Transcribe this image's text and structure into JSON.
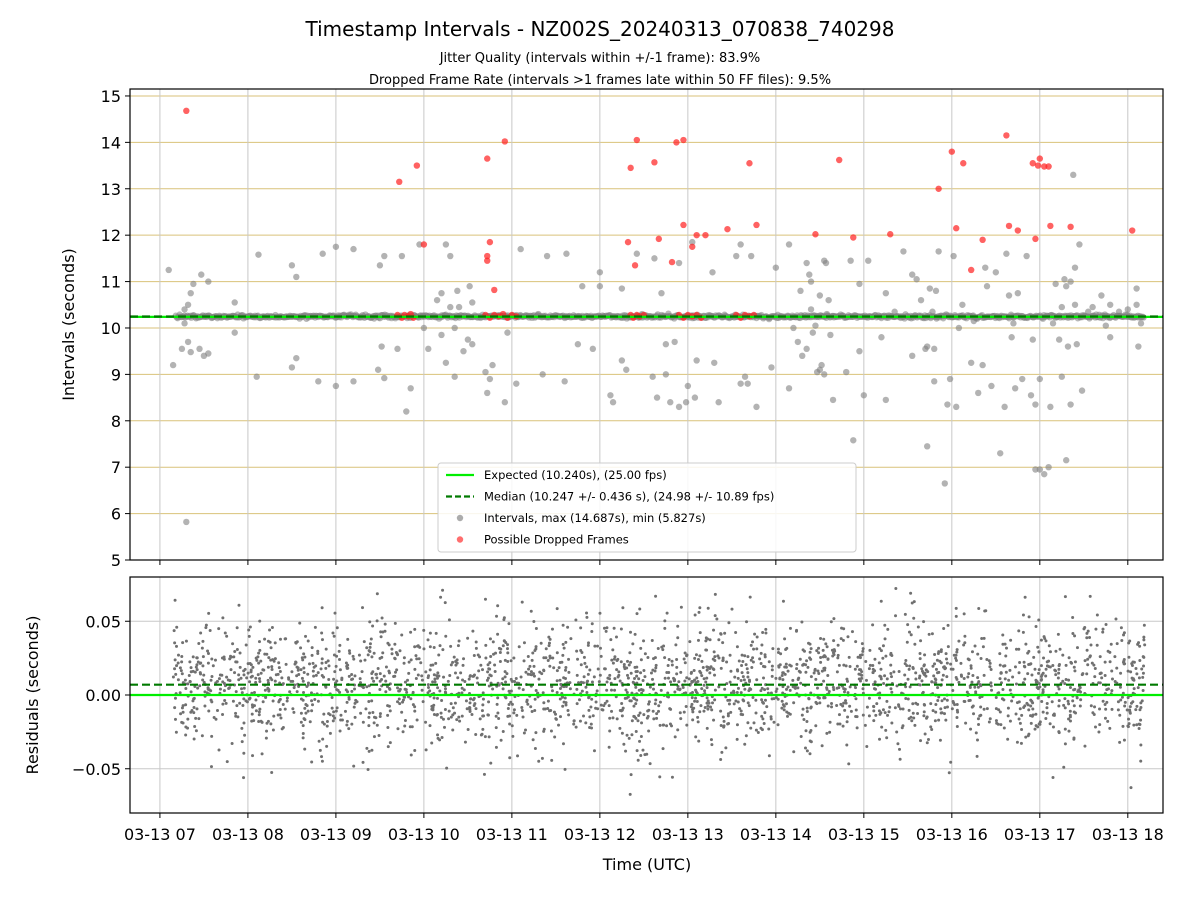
{
  "chart_data": {
    "type": "scatter",
    "title": "Timestamp Intervals - NZ002S_20240313_070838_740298",
    "subtitle_lines": [
      "Jitter Quality (intervals within +/-1 frame): 83.9%",
      "Dropped Frame Rate (intervals >1 frames late within 50 FF files): 9.5%"
    ],
    "xlabel": "Time (UTC)",
    "x_range_hours": [
      6.66,
      18.4
    ],
    "x_ticks": [
      {
        "hour": 7,
        "label": "03-13 07"
      },
      {
        "hour": 8,
        "label": "03-13 08"
      },
      {
        "hour": 9,
        "label": "03-13 09"
      },
      {
        "hour": 10,
        "label": "03-13 10"
      },
      {
        "hour": 11,
        "label": "03-13 11"
      },
      {
        "hour": 12,
        "label": "03-13 12"
      },
      {
        "hour": 13,
        "label": "03-13 13"
      },
      {
        "hour": 14,
        "label": "03-13 14"
      },
      {
        "hour": 15,
        "label": "03-13 15"
      },
      {
        "hour": 16,
        "label": "03-13 16"
      },
      {
        "hour": 17,
        "label": "03-13 17"
      },
      {
        "hour": 18,
        "label": "03-13 18"
      }
    ],
    "top_panel": {
      "ylabel": "Intervals (seconds)",
      "ylim": [
        5,
        15.15
      ],
      "y_ticks": [
        5,
        6,
        7,
        8,
        9,
        10,
        11,
        12,
        13,
        14,
        15
      ],
      "y_tick_labels": [
        "5",
        "6",
        "7",
        "8",
        "9",
        "10",
        "11",
        "12",
        "13",
        "14",
        "15"
      ],
      "grid": "horizontal every 1 s (gold) + vertical at hour ticks",
      "expected_interval": 10.24,
      "median_interval": 10.247,
      "legend_position": "lower-center",
      "legend": [
        {
          "label": "Expected (10.240s), (25.00 fps)",
          "kind": "solid-line",
          "color": "#00ee00"
        },
        {
          "label": "Median (10.247 +/- 0.436 s), (24.98 +/- 10.89 fps)",
          "kind": "dashed-line",
          "color": "#007a00"
        },
        {
          "label": "Intervals, max (14.687s), min (5.827s)",
          "kind": "dot",
          "color": "#808080"
        },
        {
          "label": "Possible Dropped Frames",
          "kind": "dot",
          "color": "#ff2020"
        }
      ],
      "interval_points": [
        [
          7.1,
          11.25
        ],
        [
          7.15,
          9.2
        ],
        [
          7.28,
          10.1
        ],
        [
          7.32,
          9.7
        ],
        [
          7.35,
          9.48
        ],
        [
          7.38,
          10.95
        ],
        [
          7.45,
          9.55
        ],
        [
          7.47,
          11.15
        ],
        [
          7.5,
          9.4
        ],
        [
          7.55,
          9.45
        ],
        [
          7.55,
          11.0
        ],
        [
          7.3,
          5.82
        ],
        [
          7.28,
          10.4
        ],
        [
          7.32,
          10.5
        ],
        [
          7.35,
          10.75
        ],
        [
          7.25,
          9.55
        ],
        [
          7.85,
          10.55
        ],
        [
          7.85,
          9.9
        ],
        [
          8.1,
          8.95
        ],
        [
          8.12,
          11.58
        ],
        [
          8.5,
          9.15
        ],
        [
          8.5,
          11.35
        ],
        [
          8.55,
          9.35
        ],
        [
          8.55,
          11.1
        ],
        [
          8.8,
          8.85
        ],
        [
          8.85,
          11.6
        ],
        [
          9.0,
          11.75
        ],
        [
          9.0,
          8.75
        ],
        [
          9.2,
          8.85
        ],
        [
          9.2,
          11.7
        ],
        [
          9.48,
          9.1
        ],
        [
          9.5,
          11.35
        ],
        [
          9.52,
          9.6
        ],
        [
          9.55,
          11.55
        ],
        [
          9.55,
          8.92
        ],
        [
          9.7,
          9.55
        ],
        [
          9.75,
          11.55
        ],
        [
          9.8,
          8.2
        ],
        [
          9.85,
          8.7
        ],
        [
          9.95,
          11.8
        ],
        [
          10.0,
          10.0
        ],
        [
          10.05,
          9.55
        ],
        [
          10.15,
          10.6
        ],
        [
          10.2,
          9.85
        ],
        [
          10.25,
          11.8
        ],
        [
          10.25,
          9.25
        ],
        [
          10.3,
          11.55
        ],
        [
          10.35,
          8.95
        ],
        [
          10.38,
          10.8
        ],
        [
          10.4,
          10.45
        ],
        [
          10.45,
          9.5
        ],
        [
          10.5,
          9.75
        ],
        [
          10.52,
          10.9
        ],
        [
          10.55,
          10.55
        ],
        [
          10.2,
          10.75
        ],
        [
          10.3,
          10.45
        ],
        [
          10.35,
          10.0
        ],
        [
          10.55,
          9.65
        ],
        [
          10.7,
          9.05
        ],
        [
          10.72,
          8.6
        ],
        [
          10.75,
          8.9
        ],
        [
          10.78,
          9.2
        ],
        [
          10.92,
          8.4
        ],
        [
          10.95,
          9.9
        ],
        [
          11.05,
          8.8
        ],
        [
          11.1,
          11.7
        ],
        [
          11.3,
          10.3
        ],
        [
          11.35,
          9.0
        ],
        [
          11.4,
          11.55
        ],
        [
          11.6,
          8.85
        ],
        [
          11.62,
          11.6
        ],
        [
          11.75,
          9.65
        ],
        [
          11.8,
          10.9
        ],
        [
          11.92,
          9.55
        ],
        [
          12.0,
          10.9
        ],
        [
          12.0,
          11.2
        ],
        [
          12.12,
          8.55
        ],
        [
          12.15,
          8.4
        ],
        [
          12.25,
          9.3
        ],
        [
          12.25,
          10.85
        ],
        [
          12.3,
          9.1
        ],
        [
          12.42,
          11.6
        ],
        [
          12.48,
          10.3
        ],
        [
          12.6,
          8.95
        ],
        [
          12.62,
          11.5
        ],
        [
          12.65,
          8.5
        ],
        [
          12.7,
          10.75
        ],
        [
          12.75,
          9.0
        ],
        [
          12.8,
          8.4
        ],
        [
          12.85,
          9.7
        ],
        [
          12.9,
          8.3
        ],
        [
          12.9,
          11.4
        ],
        [
          12.98,
          8.4
        ],
        [
          13.0,
          8.75
        ],
        [
          13.05,
          11.85
        ],
        [
          13.08,
          8.5
        ],
        [
          12.75,
          9.65
        ],
        [
          13.1,
          9.3
        ],
        [
          13.28,
          11.2
        ],
        [
          13.3,
          9.25
        ],
        [
          13.35,
          8.4
        ],
        [
          13.55,
          11.55
        ],
        [
          13.6,
          11.8
        ],
        [
          13.6,
          8.8
        ],
        [
          13.65,
          8.95
        ],
        [
          13.68,
          8.8
        ],
        [
          13.72,
          11.55
        ],
        [
          13.78,
          8.3
        ],
        [
          13.95,
          9.15
        ],
        [
          14.0,
          11.3
        ],
        [
          14.15,
          8.7
        ],
        [
          14.15,
          11.8
        ],
        [
          14.2,
          10.0
        ],
        [
          14.25,
          9.7
        ],
        [
          14.28,
          10.8
        ],
        [
          14.3,
          9.4
        ],
        [
          14.35,
          11.4
        ],
        [
          14.35,
          9.55
        ],
        [
          14.38,
          11.15
        ],
        [
          14.42,
          9.9
        ],
        [
          14.5,
          10.7
        ],
        [
          14.52,
          9.2
        ],
        [
          14.55,
          11.45
        ],
        [
          14.55,
          9.0
        ],
        [
          14.58,
          10.3
        ],
        [
          14.6,
          10.6
        ],
        [
          14.62,
          9.85
        ],
        [
          14.65,
          8.45
        ],
        [
          14.66,
          10.25
        ],
        [
          14.4,
          11.0
        ],
        [
          14.5,
          9.1
        ],
        [
          14.4,
          10.4
        ],
        [
          14.45,
          10.05
        ],
        [
          14.57,
          11.4
        ],
        [
          14.47,
          9.05
        ],
        [
          14.8,
          9.05
        ],
        [
          14.85,
          11.45
        ],
        [
          14.88,
          7.58
        ],
        [
          14.95,
          9.5
        ],
        [
          14.95,
          10.95
        ],
        [
          15.0,
          8.55
        ],
        [
          15.05,
          11.45
        ],
        [
          15.2,
          9.8
        ],
        [
          15.25,
          10.75
        ],
        [
          15.25,
          8.45
        ],
        [
          15.35,
          10.35
        ],
        [
          15.45,
          11.65
        ],
        [
          15.55,
          11.15
        ],
        [
          15.55,
          9.4
        ],
        [
          15.7,
          9.55
        ],
        [
          15.72,
          7.45
        ],
        [
          15.75,
          10.85
        ],
        [
          15.8,
          8.85
        ],
        [
          15.85,
          11.65
        ],
        [
          15.92,
          6.65
        ],
        [
          15.95,
          8.35
        ],
        [
          15.98,
          8.9
        ],
        [
          16.02,
          11.55
        ],
        [
          16.05,
          8.3
        ],
        [
          16.08,
          10.0
        ],
        [
          16.12,
          10.5
        ],
        [
          15.78,
          10.35
        ],
        [
          15.8,
          9.55
        ],
        [
          15.65,
          10.6
        ],
        [
          15.82,
          10.8
        ],
        [
          15.6,
          11.05
        ],
        [
          15.72,
          9.6
        ],
        [
          16.22,
          9.25
        ],
        [
          16.25,
          10.15
        ],
        [
          16.3,
          8.6
        ],
        [
          16.35,
          9.2
        ],
        [
          16.38,
          11.3
        ],
        [
          16.4,
          10.9
        ],
        [
          16.45,
          8.75
        ],
        [
          16.5,
          11.2
        ],
        [
          16.55,
          7.3
        ],
        [
          16.6,
          8.3
        ],
        [
          16.62,
          11.6
        ],
        [
          16.65,
          10.7
        ],
        [
          16.68,
          9.8
        ],
        [
          16.7,
          10.1
        ],
        [
          16.72,
          8.7
        ],
        [
          16.75,
          10.75
        ],
        [
          16.8,
          8.9
        ],
        [
          16.85,
          11.55
        ],
        [
          16.9,
          8.55
        ],
        [
          16.92,
          9.75
        ],
        [
          16.95,
          8.35
        ],
        [
          17.0,
          8.9
        ],
        [
          16.95,
          6.95
        ],
        [
          17.0,
          6.95
        ],
        [
          17.05,
          6.85
        ],
        [
          17.1,
          7.0
        ],
        [
          17.12,
          8.3
        ],
        [
          17.15,
          10.1
        ],
        [
          17.18,
          10.95
        ],
        [
          17.22,
          9.75
        ],
        [
          17.25,
          8.95
        ],
        [
          17.28,
          11.05
        ],
        [
          17.3,
          7.15
        ],
        [
          17.32,
          9.6
        ],
        [
          17.35,
          8.35
        ],
        [
          17.38,
          13.3
        ],
        [
          17.4,
          11.3
        ],
        [
          17.42,
          9.65
        ],
        [
          17.45,
          11.8
        ],
        [
          17.35,
          11.0
        ],
        [
          17.3,
          10.9
        ],
        [
          17.48,
          8.65
        ],
        [
          17.25,
          10.45
        ],
        [
          17.4,
          10.5
        ],
        [
          17.7,
          10.7
        ],
        [
          17.75,
          10.05
        ],
        [
          17.8,
          9.8
        ],
        [
          17.8,
          10.5
        ],
        [
          18.1,
          10.85
        ],
        [
          18.12,
          9.6
        ],
        [
          18.15,
          10.1
        ],
        [
          18.1,
          10.5
        ],
        [
          17.9,
          10.35
        ],
        [
          18.0,
          10.4
        ],
        [
          17.6,
          10.45
        ],
        [
          17.55,
          10.35
        ]
      ],
      "dropped_points": [
        [
          7.3,
          14.68
        ],
        [
          9.72,
          13.15
        ],
        [
          9.92,
          13.5
        ],
        [
          10.0,
          11.8
        ],
        [
          10.72,
          11.45
        ],
        [
          10.72,
          11.55
        ],
        [
          10.75,
          11.85
        ],
        [
          10.8,
          10.82
        ],
        [
          10.72,
          13.65
        ],
        [
          10.92,
          14.02
        ],
        [
          12.32,
          11.85
        ],
        [
          12.4,
          11.35
        ],
        [
          12.35,
          13.45
        ],
        [
          12.42,
          14.05
        ],
        [
          12.62,
          13.57
        ],
        [
          12.67,
          11.92
        ],
        [
          12.82,
          11.42
        ],
        [
          12.87,
          14.0
        ],
        [
          12.95,
          12.22
        ],
        [
          12.95,
          14.05
        ],
        [
          13.05,
          11.75
        ],
        [
          13.1,
          12.0
        ],
        [
          13.2,
          12.0
        ],
        [
          13.45,
          12.13
        ],
        [
          13.7,
          13.55
        ],
        [
          13.78,
          12.22
        ],
        [
          14.45,
          12.02
        ],
        [
          14.72,
          13.62
        ],
        [
          14.88,
          11.95
        ],
        [
          15.3,
          12.02
        ],
        [
          15.85,
          13.0
        ],
        [
          16.0,
          13.8
        ],
        [
          16.05,
          12.15
        ],
        [
          16.13,
          13.55
        ],
        [
          16.22,
          11.25
        ],
        [
          16.35,
          11.9
        ],
        [
          16.62,
          14.15
        ],
        [
          16.65,
          12.2
        ],
        [
          16.75,
          12.1
        ],
        [
          16.92,
          13.55
        ],
        [
          16.95,
          11.92
        ],
        [
          16.98,
          13.5
        ],
        [
          17.0,
          13.65
        ],
        [
          17.05,
          13.48
        ],
        [
          17.1,
          13.48
        ],
        [
          17.12,
          12.2
        ],
        [
          17.35,
          12.18
        ],
        [
          18.05,
          12.1
        ],
        [
          9.7,
          10.28
        ],
        [
          9.75,
          10.22
        ],
        [
          9.78,
          10.28
        ],
        [
          9.82,
          10.25
        ],
        [
          9.85,
          10.3
        ],
        [
          9.88,
          10.22
        ],
        [
          10.7,
          10.28
        ],
        [
          10.75,
          10.22
        ],
        [
          10.8,
          10.28
        ],
        [
          10.85,
          10.25
        ],
        [
          10.9,
          10.3
        ],
        [
          10.95,
          10.22
        ],
        [
          11.0,
          10.28
        ],
        [
          11.05,
          10.25
        ],
        [
          12.35,
          10.28
        ],
        [
          12.38,
          10.22
        ],
        [
          12.42,
          10.28
        ],
        [
          12.45,
          10.25
        ],
        [
          12.5,
          10.28
        ],
        [
          12.9,
          10.28
        ],
        [
          12.95,
          10.22
        ],
        [
          13.0,
          10.28
        ],
        [
          13.05,
          10.25
        ],
        [
          13.1,
          10.28
        ],
        [
          13.15,
          10.22
        ],
        [
          13.55,
          10.28
        ],
        [
          13.6,
          10.22
        ],
        [
          13.65,
          10.28
        ],
        [
          13.7,
          10.25
        ],
        [
          13.75,
          10.28
        ]
      ]
    },
    "bottom_panel": {
      "ylabel": "Residuals (seconds)",
      "ylim": [
        -0.08,
        0.08
      ],
      "y_ticks": [
        -0.05,
        0,
        0.05
      ],
      "y_tick_labels": [
        "−0.05",
        "0.00",
        "0.05"
      ],
      "grid": "horizontal at y ticks + vertical at hour ticks",
      "expected_residual": 0.0,
      "median_residual": 0.007,
      "residual_cloud": {
        "x_range_hours": [
          7.15,
          18.2
        ],
        "count": 2600,
        "center": 0.008,
        "spread_sd": 0.022,
        "range": [
          -0.073,
          0.077
        ]
      }
    },
    "colors": {
      "expected_line": "#00ee00",
      "median_line": "#007a00",
      "interval_points": "#808080",
      "dropped_points": "#ff2020",
      "residual_points": "#707070",
      "horizontal_grid_top": "#d9c27a",
      "grid": "#c8c8c8"
    }
  }
}
